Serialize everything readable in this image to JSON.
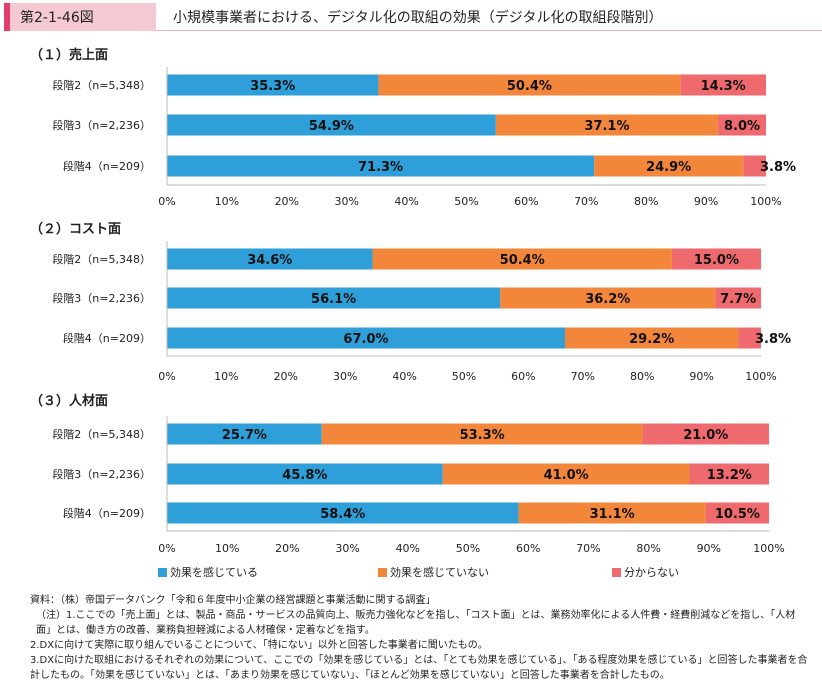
{
  "header": {
    "figure_label": "第2-1-46図",
    "title": "小規模事業者における、デジタル化の取組の効果（デジタル化の取組段階別）"
  },
  "colors": {
    "effective": "#2e9fd8",
    "not_effective": "#f2873b",
    "unknown": "#ef6a6e"
  },
  "chart_data": [
    {
      "type": "bar",
      "orientation": "horizontal",
      "stacked": "percent",
      "title": "（１）売上面",
      "categories": [
        "段階2（n=5,348）",
        "段階3（n=2,236）",
        "段階4（n=209）"
      ],
      "series": [
        {
          "name": "効果を感じている",
          "values": [
            35.3,
            54.9,
            71.3
          ],
          "labels": [
            "35.3%",
            "54.9%",
            "71.3%"
          ]
        },
        {
          "name": "効果を感じていない",
          "values": [
            50.4,
            37.1,
            24.9
          ],
          "labels": [
            "50.4%",
            "37.1%",
            "24.9%"
          ]
        },
        {
          "name": "分からない",
          "values": [
            14.3,
            8.0,
            3.8
          ],
          "labels": [
            "14.3%",
            "8.0%",
            "3.8%"
          ]
        }
      ],
      "xlim": [
        0,
        100
      ],
      "xticks": [
        "0%",
        "10%",
        "20%",
        "30%",
        "40%",
        "50%",
        "60%",
        "70%",
        "80%",
        "90%",
        "100%"
      ]
    },
    {
      "type": "bar",
      "orientation": "horizontal",
      "stacked": "percent",
      "title": "（２）コスト面",
      "categories": [
        "段階2（n=5,348）",
        "段階3（n=2,236）",
        "段階4（n=209）"
      ],
      "series": [
        {
          "name": "効果を感じている",
          "values": [
            34.6,
            56.1,
            67.0
          ],
          "labels": [
            "34.6%",
            "56.1%",
            "67.0%"
          ]
        },
        {
          "name": "効果を感じていない",
          "values": [
            50.4,
            36.2,
            29.2
          ],
          "labels": [
            "50.4%",
            "36.2%",
            "29.2%"
          ]
        },
        {
          "name": "分からない",
          "values": [
            15.0,
            7.7,
            3.8
          ],
          "labels": [
            "15.0%",
            "7.7%",
            "3.8%"
          ]
        }
      ],
      "xlim": [
        0,
        100
      ],
      "xticks": [
        "0%",
        "10%",
        "20%",
        "30%",
        "40%",
        "50%",
        "60%",
        "70%",
        "80%",
        "90%",
        "100%"
      ]
    },
    {
      "type": "bar",
      "orientation": "horizontal",
      "stacked": "percent",
      "title": "（３）人材面",
      "categories": [
        "段階2（n=5,348）",
        "段階3（n=2,236）",
        "段階4（n=209）"
      ],
      "series": [
        {
          "name": "効果を感じている",
          "values": [
            25.7,
            45.8,
            58.4
          ],
          "labels": [
            "25.7%",
            "45.8%",
            "58.4%"
          ]
        },
        {
          "name": "効果を感じていない",
          "values": [
            53.3,
            41.0,
            31.1
          ],
          "labels": [
            "53.3%",
            "41.0%",
            "31.1%"
          ]
        },
        {
          "name": "分からない",
          "values": [
            21.0,
            13.2,
            10.5
          ],
          "labels": [
            "21.0%",
            "13.2%",
            "10.5%"
          ]
        }
      ],
      "xlim": [
        0,
        100
      ],
      "xticks": [
        "0%",
        "10%",
        "20%",
        "30%",
        "40%",
        "50%",
        "60%",
        "70%",
        "80%",
        "90%",
        "100%"
      ]
    }
  ],
  "legend": [
    {
      "label": "効果を感じている",
      "color": "#2e9fd8"
    },
    {
      "label": "効果を感じていない",
      "color": "#f2873b"
    },
    {
      "label": "分からない",
      "color": "#ef6a6e"
    }
  ],
  "notes": [
    "資料：（株）帝国データバンク「令和６年度中小企業の経営課題と事業活動に関する調査」",
    "（注）1.ここでの「売上面」とは、製品・商品・サービスの品質向上、販売力強化などを指し、「コスト面」とは、業務効率化による人件費・経費削減などを指し、「人材面」とは、働き方の改善、業務負担軽減による人材確保・定着などを指す。",
    "2.DXに向けて実際に取り組んでいることについて、「特にない」以外と回答した事業者に聞いたもの。",
    "3.DXに向けた取組におけるそれぞれの効果について、ここでの「効果を感じている」とは、「とても効果を感じている」、「ある程度効果を感じている」と回答した事業者を合計したもの。「効果を感じていない」とは、「あまり効果を感じていない」、「ほとんど効果を感じていない」と回答した事業者を合計したもの。"
  ]
}
